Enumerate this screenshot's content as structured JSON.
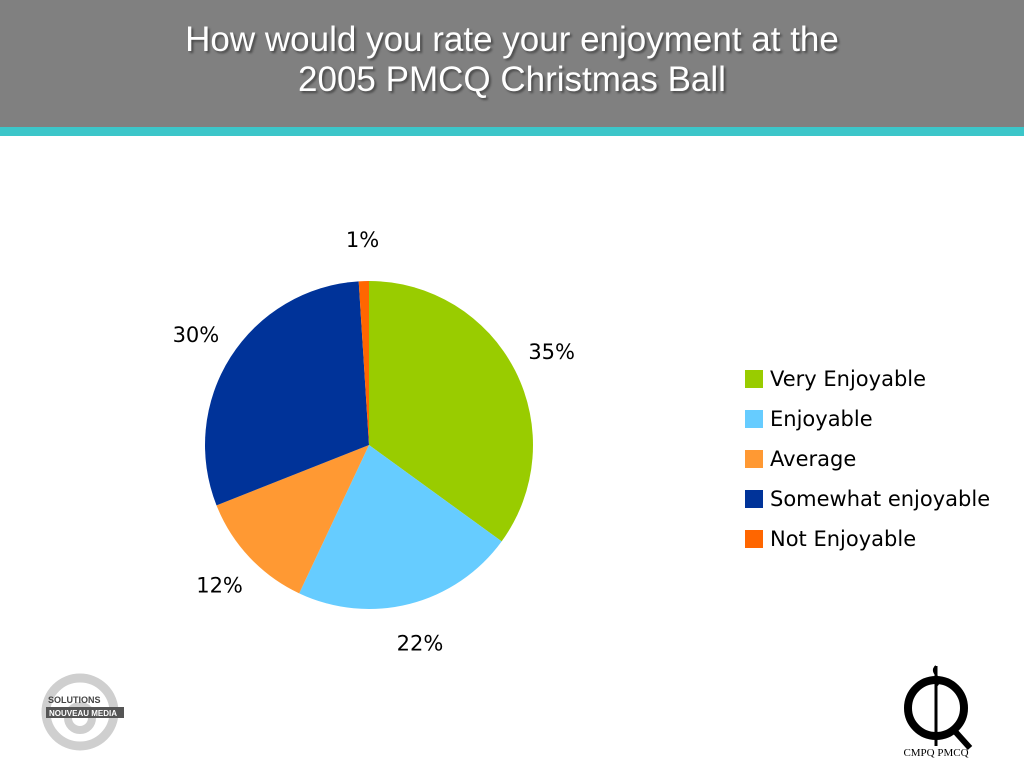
{
  "header": {
    "title_line1": "How would you rate your enjoyment at the",
    "title_line2": "2005 PMCQ Christmas Ball"
  },
  "chart_data": {
    "type": "pie",
    "title": "How would you rate your enjoyment at the 2005 PMCQ Christmas Ball",
    "categories": [
      "Very Enjoyable",
      "Enjoyable",
      "Average",
      "Somewhat enjoyable",
      "Not Enjoyable"
    ],
    "values": [
      35,
      22,
      12,
      30,
      1
    ],
    "labels": [
      "35%",
      "22%",
      "12%",
      "30%",
      "1%"
    ],
    "colors": [
      "#99cc00",
      "#66ccff",
      "#ff9933",
      "#003399",
      "#ff6600"
    ],
    "legend": "right"
  },
  "logos": {
    "left": {
      "line1": "SOLUTIONS",
      "line2": "NOUVEAU MEDIA",
      "icon": "at-sign-icon"
    },
    "right": {
      "caption": "CMPQ PMCQ",
      "icon": "cmpq-logo-icon"
    }
  }
}
